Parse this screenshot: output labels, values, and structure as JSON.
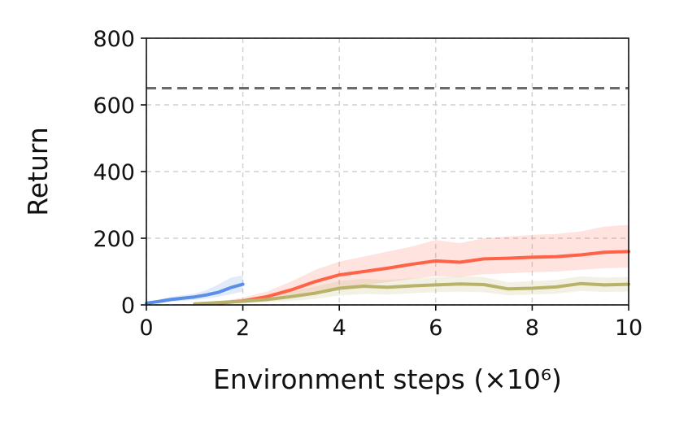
{
  "chart_data": {
    "type": "line",
    "title": "",
    "xlabel": "Environment steps (×10⁶)",
    "ylabel": "Return",
    "xlim": [
      0,
      10
    ],
    "ylim": [
      0,
      800
    ],
    "xticks": [
      0,
      2,
      4,
      6,
      8,
      10
    ],
    "xtick_labels": [
      "0",
      "2",
      "4",
      "6",
      "8",
      "10"
    ],
    "yticks": [
      0,
      200,
      400,
      600,
      800
    ],
    "ytick_labels": [
      "0",
      "200",
      "400",
      "600",
      "800"
    ],
    "grid": true,
    "legend": "none",
    "reference_line": {
      "y": 650,
      "color": "#6b6b6b",
      "style": "dashed"
    },
    "series": [
      {
        "color": "#5b8ee6",
        "x": [
          0,
          0.25,
          0.5,
          0.75,
          1.0,
          1.25,
          1.5,
          1.75,
          2.0
        ],
        "y": [
          5,
          10,
          16,
          20,
          24,
          30,
          38,
          52,
          62
        ],
        "band_low": [
          2,
          5,
          9,
          12,
          15,
          19,
          25,
          32,
          40
        ],
        "band_high": [
          9,
          16,
          24,
          29,
          34,
          45,
          62,
          82,
          88
        ]
      },
      {
        "color": "#ff6347",
        "x": [
          1.5,
          2.0,
          2.5,
          3.0,
          3.5,
          4.0,
          4.5,
          5.0,
          5.5,
          6.0,
          6.5,
          7.0,
          7.5,
          8.0,
          8.5,
          9.0,
          9.5,
          10.0
        ],
        "y": [
          5,
          12,
          25,
          45,
          70,
          90,
          100,
          110,
          122,
          132,
          128,
          138,
          140,
          143,
          145,
          150,
          158,
          160
        ],
        "band_low": [
          2,
          6,
          12,
          22,
          38,
          52,
          60,
          68,
          78,
          86,
          84,
          92,
          95,
          98,
          100,
          105,
          110,
          112
        ],
        "band_high": [
          10,
          22,
          40,
          70,
          105,
          130,
          145,
          160,
          175,
          195,
          185,
          200,
          205,
          210,
          213,
          220,
          235,
          240
        ]
      },
      {
        "color": "#b8b36a",
        "x": [
          1.0,
          1.5,
          2.0,
          2.5,
          3.0,
          3.5,
          4.0,
          4.5,
          5.0,
          5.5,
          6.0,
          6.5,
          7.0,
          7.5,
          8.0,
          8.5,
          9.0,
          9.5,
          10.0
        ],
        "y": [
          3,
          7,
          11,
          16,
          25,
          35,
          50,
          56,
          53,
          57,
          60,
          63,
          61,
          48,
          50,
          54,
          64,
          60,
          62
        ],
        "band_low": [
          1,
          3,
          5,
          8,
          12,
          18,
          28,
          33,
          31,
          35,
          38,
          40,
          38,
          29,
          31,
          34,
          42,
          39,
          40
        ],
        "band_high": [
          6,
          12,
          18,
          26,
          40,
          55,
          72,
          78,
          75,
          80,
          83,
          86,
          84,
          68,
          71,
          75,
          86,
          82,
          84
        ]
      }
    ]
  }
}
